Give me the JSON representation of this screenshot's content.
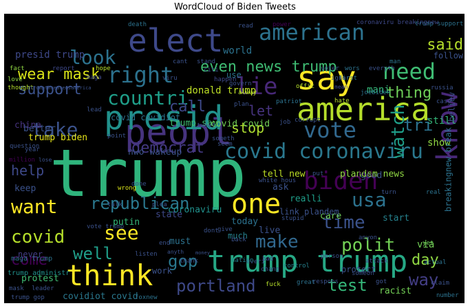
{
  "title": "WordCloud of Biden Tweets",
  "words": [
    {
      "text": "trump",
      "size": 95,
      "color": "#2fb47c"
    },
    {
      "text": "peopl",
      "size": 52,
      "color": "#46337e"
    },
    {
      "text": "presid",
      "size": 48,
      "color": "#21918c"
    },
    {
      "text": "say",
      "size": 48,
      "color": "#fde725"
    },
    {
      "text": "america",
      "size": 46,
      "color": "#b5de2b"
    },
    {
      "text": "elect",
      "size": 46,
      "color": "#3e4989"
    },
    {
      "text": "trump trump",
      "size": 44,
      "color": "#26a784"
    },
    {
      "text": "one",
      "size": 40,
      "color": "#fde725"
    },
    {
      "text": "think",
      "size": 42,
      "color": "#fde725"
    },
    {
      "text": "american",
      "size": 32,
      "color": "#2c728e"
    },
    {
      "text": "need",
      "size": 32,
      "color": "#3fbc73"
    },
    {
      "text": "biden",
      "size": 36,
      "color": "#440154"
    },
    {
      "text": "covid coronaviru",
      "size": 30,
      "color": "#2a788e"
    },
    {
      "text": "know",
      "size": 42,
      "color": "#482878"
    },
    {
      "text": "vote",
      "size": 32,
      "color": "#31688e"
    },
    {
      "text": "right",
      "size": 32,
      "color": "#2c728e"
    },
    {
      "text": "countri",
      "size": 28,
      "color": "#1f9e89"
    },
    {
      "text": "lie",
      "size": 34,
      "color": "#482878"
    },
    {
      "text": "take",
      "size": 28,
      "color": "#3b528b"
    },
    {
      "text": "want",
      "size": 28,
      "color": "#fde725"
    },
    {
      "text": "look",
      "size": 28,
      "color": "#2c728e"
    },
    {
      "text": "see",
      "size": 28,
      "color": "#fde725"
    },
    {
      "text": "make",
      "size": 26,
      "color": "#31688e"
    },
    {
      "text": "polit",
      "size": 26,
      "color": "#73d056"
    },
    {
      "text": "time",
      "size": 26,
      "color": "#3b528b"
    },
    {
      "text": "watch",
      "size": 26,
      "color": "#1f9e89"
    },
    {
      "text": "usa",
      "size": 28,
      "color": "#2c728e"
    },
    {
      "text": "republican",
      "size": 24,
      "color": "#2a788e"
    },
    {
      "text": "democrat",
      "size": 22,
      "color": "#443983"
    },
    {
      "text": "covid",
      "size": 26,
      "color": "#b5de2b"
    },
    {
      "text": "come",
      "size": 22,
      "color": "#440154"
    },
    {
      "text": "well",
      "size": 24,
      "color": "#1f9e89"
    },
    {
      "text": "gop",
      "size": 24,
      "color": "#2a788e"
    },
    {
      "text": "portland",
      "size": 24,
      "color": "#3e4989"
    },
    {
      "text": "test",
      "size": 24,
      "color": "#35b779"
    },
    {
      "text": "way",
      "size": 24,
      "color": "#433e85"
    },
    {
      "text": "day",
      "size": 22,
      "color": "#90d743"
    },
    {
      "text": "said",
      "size": 22,
      "color": "#b5de2b"
    },
    {
      "text": "support",
      "size": 22,
      "color": "#3b528b"
    },
    {
      "text": "wear mask",
      "size": 22,
      "color": "#d8e219"
    },
    {
      "text": "even news trump",
      "size": 22,
      "color": "#3fbc73"
    },
    {
      "text": "thing",
      "size": 22,
      "color": "#6ece58"
    },
    {
      "text": "call",
      "size": 22,
      "color": "#3e4989"
    },
    {
      "text": "stop",
      "size": 20,
      "color": "#addc30"
    },
    {
      "text": "tri",
      "size": 24,
      "color": "#2c728e"
    },
    {
      "text": "help",
      "size": 20,
      "color": "#3e4989"
    },
    {
      "text": "let",
      "size": 20,
      "color": "#46337e"
    },
    {
      "text": "show",
      "size": 14,
      "color": "#90d743"
    },
    {
      "text": "still",
      "size": 14,
      "color": "#35b779"
    },
    {
      "text": "presid trump",
      "size": 14,
      "color": "#3e4989"
    },
    {
      "text": "world",
      "size": 14,
      "color": "#2c728e"
    },
    {
      "text": "donald trump",
      "size": 14,
      "color": "#bddf26"
    },
    {
      "text": "mani",
      "size": 14,
      "color": "#35b779"
    },
    {
      "text": "trump say",
      "size": 13,
      "color": "#3fbc73"
    },
    {
      "text": "covid covid",
      "size": 13,
      "color": "#73d056"
    },
    {
      "text": "covid covidiot",
      "size": 12,
      "color": "#2c728e"
    },
    {
      "text": "trump biden",
      "size": 13,
      "color": "#e5e419"
    },
    {
      "text": "nwo wakeup",
      "size": 13,
      "color": "#3b528b"
    },
    {
      "text": "better",
      "size": 13,
      "color": "#3b528b"
    },
    {
      "text": "china",
      "size": 13,
      "color": "#46337e"
    },
    {
      "text": "keep",
      "size": 13,
      "color": "#3b528b"
    },
    {
      "text": "ask",
      "size": 13,
      "color": "#3b528b"
    },
    {
      "text": "realli",
      "size": 13,
      "color": "#1f9e89"
    },
    {
      "text": "good",
      "size": 13,
      "color": "#3b528b"
    },
    {
      "text": "tell new",
      "size": 13,
      "color": "#bddf26"
    },
    {
      "text": "plandem news",
      "size": 13,
      "color": "#90d743"
    },
    {
      "text": "care",
      "size": 13,
      "color": "#6ece58"
    },
    {
      "text": "today",
      "size": 13,
      "color": "#2c728e"
    },
    {
      "text": "putin",
      "size": 13,
      "color": "#35b779"
    },
    {
      "text": "state",
      "size": 13,
      "color": "#3e4989"
    },
    {
      "text": "coronaviru",
      "size": 13,
      "color": "#21918c"
    },
    {
      "text": "link plandem",
      "size": 12,
      "color": "#3b528b"
    },
    {
      "text": "live",
      "size": 13,
      "color": "#3b528b"
    },
    {
      "text": "start",
      "size": 13,
      "color": "#26828e"
    },
    {
      "text": "must",
      "size": 13,
      "color": "#2c728e"
    },
    {
      "text": "never",
      "size": 12,
      "color": "#433e85"
    },
    {
      "text": "protest",
      "size": 13,
      "color": "#3fbc73"
    },
    {
      "text": "covidiot covid",
      "size": 13,
      "color": "#2a788e"
    },
    {
      "text": "work",
      "size": 12,
      "color": "#3b528b"
    },
    {
      "text": "racist",
      "size": 13,
      "color": "#73d056"
    },
    {
      "text": "protect",
      "size": 12,
      "color": "#3b528b"
    },
    {
      "text": "breakingnew break",
      "size": 12,
      "color": "#2c728e"
    },
    {
      "text": "via",
      "size": 14,
      "color": "#73d056"
    },
    {
      "text": "believ",
      "size": 12,
      "color": "#3b528b"
    },
    {
      "text": "much",
      "size": 12,
      "color": "#26828e"
    },
    {
      "text": "use",
      "size": 12,
      "color": "#2c728e"
    },
    {
      "text": "follow",
      "size": 12,
      "color": "#3b528b"
    },
    {
      "text": "maga trump",
      "size": 10,
      "color": "#2c728e"
    },
    {
      "text": "trump administr",
      "size": 10,
      "color": "#21918c"
    },
    {
      "text": "trump support",
      "size": 9,
      "color": "#2c728e"
    },
    {
      "text": "coronaviru breakingnew",
      "size": 9,
      "color": "#3e4989"
    },
    {
      "text": "trump gop",
      "size": 9,
      "color": "#3b528b"
    },
    {
      "text": "foxnew",
      "size": 9,
      "color": "#2c728e"
    },
    {
      "text": "fact",
      "size": 9,
      "color": "#90d743"
    },
    {
      "text": "report",
      "size": 9,
      "color": "#3e4989"
    },
    {
      "text": "hope",
      "size": 9,
      "color": "#b5de2b"
    },
    {
      "text": "love",
      "size": 9,
      "color": "#90d743"
    },
    {
      "text": "thought",
      "size": 9,
      "color": "#b5de2b"
    },
    {
      "text": "trumpthreatensamerica",
      "size": 7,
      "color": "#3b528b"
    },
    {
      "text": "death",
      "size": 9,
      "color": "#2c728e"
    },
    {
      "text": "maga",
      "size": 9,
      "color": "#3e4989"
    },
    {
      "text": "great",
      "size": 9,
      "color": "#2c728e"
    },
    {
      "text": "vote trump",
      "size": 9,
      "color": "#3b528b"
    },
    {
      "text": "wrong",
      "size": 9,
      "color": "#d8e219"
    },
    {
      "text": "mask",
      "size": 9,
      "color": "#3b528b"
    },
    {
      "text": "leader",
      "size": 9,
      "color": "#3b528b"
    },
    {
      "text": "everi",
      "size": 9,
      "color": "#3b528b"
    },
    {
      "text": "nation",
      "size": 9,
      "color": "#26828e"
    },
    {
      "text": "bad",
      "size": 9,
      "color": "#3e4989"
    },
    {
      "text": "control",
      "size": 9,
      "color": "#26828e"
    },
    {
      "text": "fuck",
      "size": 9,
      "color": "#b5de2b"
    },
    {
      "text": "respons",
      "size": 9,
      "color": "#3b528b"
    },
    {
      "text": "got",
      "size": 9,
      "color": "#3b528b"
    },
    {
      "text": "number",
      "size": 9,
      "color": "#2c728e"
    },
    {
      "text": "claim",
      "size": 9,
      "color": "#3b528b"
    },
    {
      "text": "actual",
      "size": 9,
      "color": "#2c728e"
    },
    {
      "text": "yet",
      "size": 9,
      "color": "#6ece58"
    },
    {
      "text": "attack",
      "size": 9,
      "color": "#3e4989"
    },
    {
      "text": "person",
      "size": 9,
      "color": "#3b528b"
    },
    {
      "text": "anyon",
      "size": 9,
      "color": "#3b528b"
    },
    {
      "text": "turn",
      "size": 9,
      "color": "#3b528b"
    },
    {
      "text": "real",
      "size": 9,
      "color": "#2c728e"
    },
    {
      "text": "kill",
      "size": 9,
      "color": "#440154"
    },
    {
      "text": "put",
      "size": 9,
      "color": "#3b528b"
    },
    {
      "text": "white hous",
      "size": 9,
      "color": "#3b528b"
    },
    {
      "text": "job",
      "size": 9,
      "color": "#3b528b"
    },
    {
      "text": "corrupt",
      "size": 9,
      "color": "#3b528b"
    },
    {
      "text": "patriot",
      "size": 9,
      "color": "#2c728e"
    },
    {
      "text": "hate",
      "size": 9,
      "color": "#b5de2b"
    },
    {
      "text": "case",
      "size": 9,
      "color": "#3b528b"
    },
    {
      "text": "joebiden",
      "size": 9,
      "color": "#2c728e"
    },
    {
      "text": "russia",
      "size": 9,
      "color": "#3b528b"
    },
    {
      "text": "mean",
      "size": 8,
      "color": "#3e4989"
    },
    {
      "text": "man",
      "size": 9,
      "color": "#2c728e"
    },
    {
      "text": "ignor",
      "size": 9,
      "color": "#3b528b"
    },
    {
      "text": "first",
      "size": 9,
      "color": "#2c728e"
    },
    {
      "text": "wors",
      "size": 9,
      "color": "#2c728e"
    },
    {
      "text": "everyth",
      "size": 9,
      "color": "#3b528b"
    },
    {
      "text": "voter",
      "size": 9,
      "color": "#3b528b"
    },
    {
      "text": "offic",
      "size": 9,
      "color": "#b5de2b"
    },
    {
      "text": "alway",
      "size": 9,
      "color": "#b5de2b"
    },
    {
      "text": "plan",
      "size": 9,
      "color": "#3b528b"
    },
    {
      "text": "govern",
      "size": 9,
      "color": "#3b528b"
    },
    {
      "text": "happen",
      "size": 9,
      "color": "#3e4989"
    },
    {
      "text": "citi",
      "size": 9,
      "color": "#3b528b"
    },
    {
      "text": "stand",
      "size": 9,
      "color": "#3b528b"
    },
    {
      "text": "cant",
      "size": 9,
      "color": "#3b528b"
    },
    {
      "text": "viru",
      "size": 9,
      "color": "#3b528b"
    },
    {
      "text": "read",
      "size": 9,
      "color": "#3b528b"
    },
    {
      "text": "power",
      "size": 9,
      "color": "#440154"
    },
    {
      "text": "someth",
      "size": 9,
      "color": "#3b528b"
    },
    {
      "text": "seem",
      "size": 9,
      "color": "#3b528b"
    },
    {
      "text": "tweet",
      "size": 9,
      "color": "#3b528b"
    },
    {
      "text": "point",
      "size": 9,
      "color": "#3b528b"
    },
    {
      "text": "lead",
      "size": 9,
      "color": "#3b528b"
    },
    {
      "text": "question",
      "size": 9,
      "color": "#3b528b"
    },
    {
      "text": "million",
      "size": 9,
      "color": "#440154"
    },
    {
      "text": "year",
      "size": 9,
      "color": "#3b528b"
    },
    {
      "text": "lose",
      "size": 8,
      "color": "#3b528b"
    },
    {
      "text": "done",
      "size": 9,
      "color": "#3b528b"
    },
    {
      "text": "talk",
      "size": 9,
      "color": "#3b528b"
    },
    {
      "text": "plea",
      "size": 9,
      "color": "#3b528b"
    },
    {
      "text": "thank",
      "size": 9,
      "color": "#3b528b"
    },
    {
      "text": "end",
      "size": 9,
      "color": "#3b528b"
    },
    {
      "text": "listen",
      "size": 9,
      "color": "#3b528b"
    },
    {
      "text": "anyth",
      "size": 8,
      "color": "#3b528b"
    },
    {
      "text": "give",
      "size": 9,
      "color": "#3b528b"
    },
    {
      "text": "stupid",
      "size": 9,
      "color": "#3b528b"
    },
    {
      "text": "dont",
      "size": 9,
      "color": "#3b528b"
    },
    {
      "text": "back",
      "size": 9,
      "color": "#3b528b"
    },
    {
      "text": "someon",
      "size": 9,
      "color": "#3b528b"
    },
    {
      "text": "chang",
      "size": 9,
      "color": "#3b528b"
    },
    {
      "text": "money",
      "size": 7,
      "color": "#3b528b"
    }
  ]
}
